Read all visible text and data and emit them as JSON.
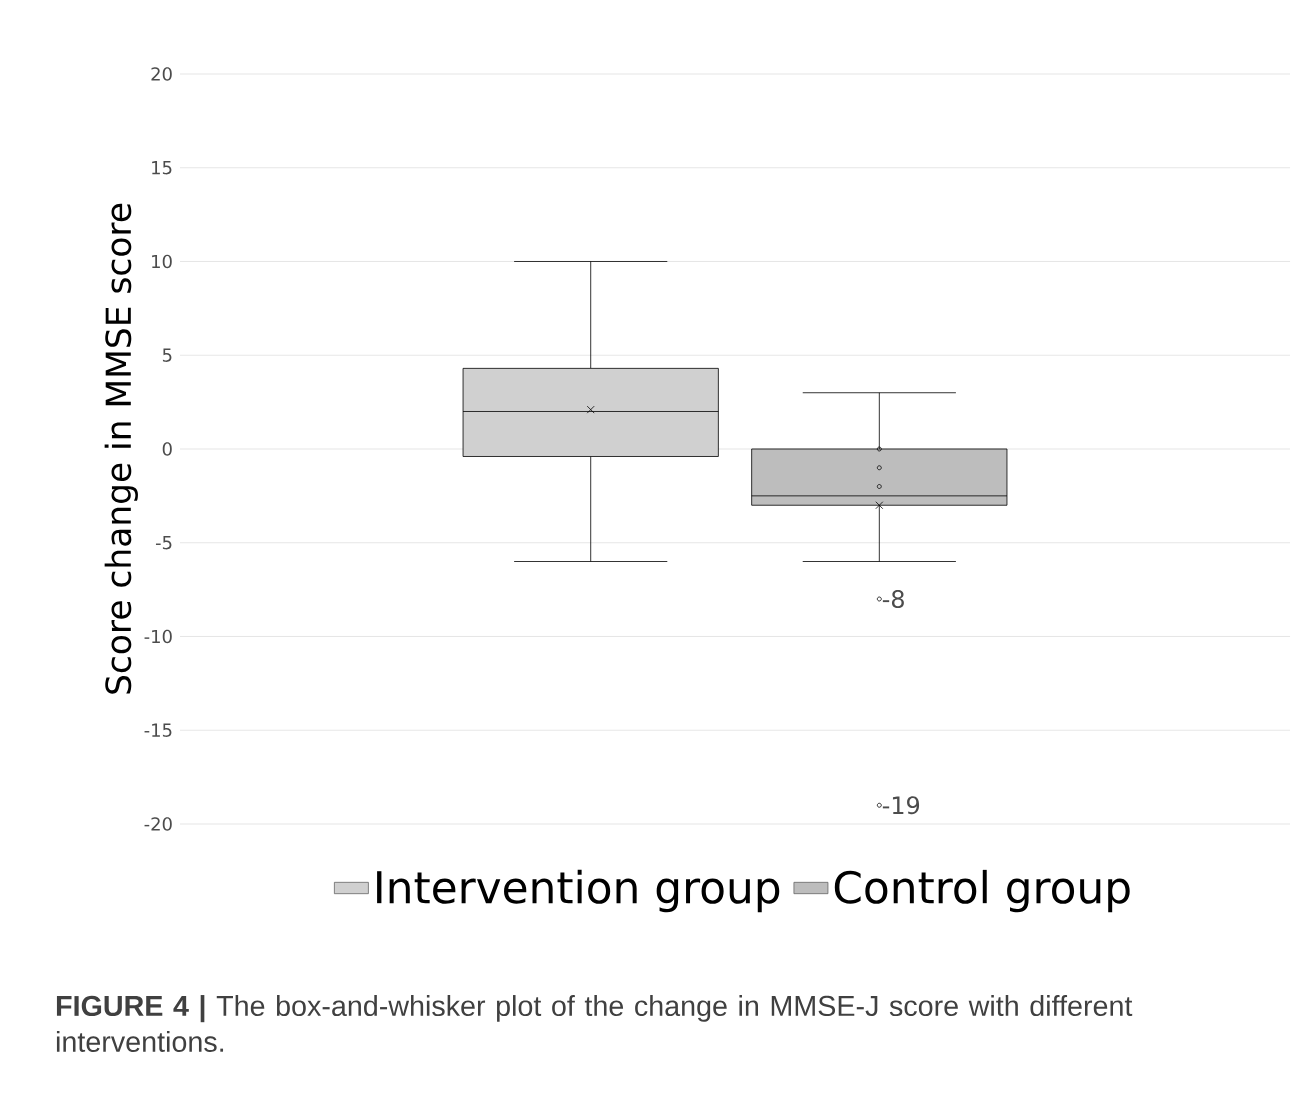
{
  "chart_data": {
    "type": "box",
    "ylabel": "Score change in MMSE score",
    "categories": [
      null
    ],
    "series": [
      {
        "name": "Intervention group",
        "color": "#d0d0d0",
        "boxes": [
          {
            "low": -6,
            "q1": -0.4,
            "median": 2,
            "q3": 4.3,
            "high": 10,
            "mean": 2.1
          }
        ]
      },
      {
        "name": "Control group",
        "color": "#bdbdbd",
        "boxes": [
          {
            "low": -6,
            "q1": -3,
            "median": -2.5,
            "q3": 0,
            "high": 3,
            "mean": -3,
            "outliers": [
              0,
              -1,
              -2,
              -8,
              -19
            ]
          }
        ]
      }
    ],
    "ylim": [
      -20,
      20
    ],
    "yticks": [
      -20,
      -15,
      -10,
      -5,
      0,
      5,
      10,
      15,
      20
    ],
    "grid": "y",
    "legend": "bottom",
    "annotations": [
      "-8",
      "-19",
      "**FIGURE 4 |** The box-and-whisker plot of the change in MMSE-J score with different interventions."
    ]
  }
}
